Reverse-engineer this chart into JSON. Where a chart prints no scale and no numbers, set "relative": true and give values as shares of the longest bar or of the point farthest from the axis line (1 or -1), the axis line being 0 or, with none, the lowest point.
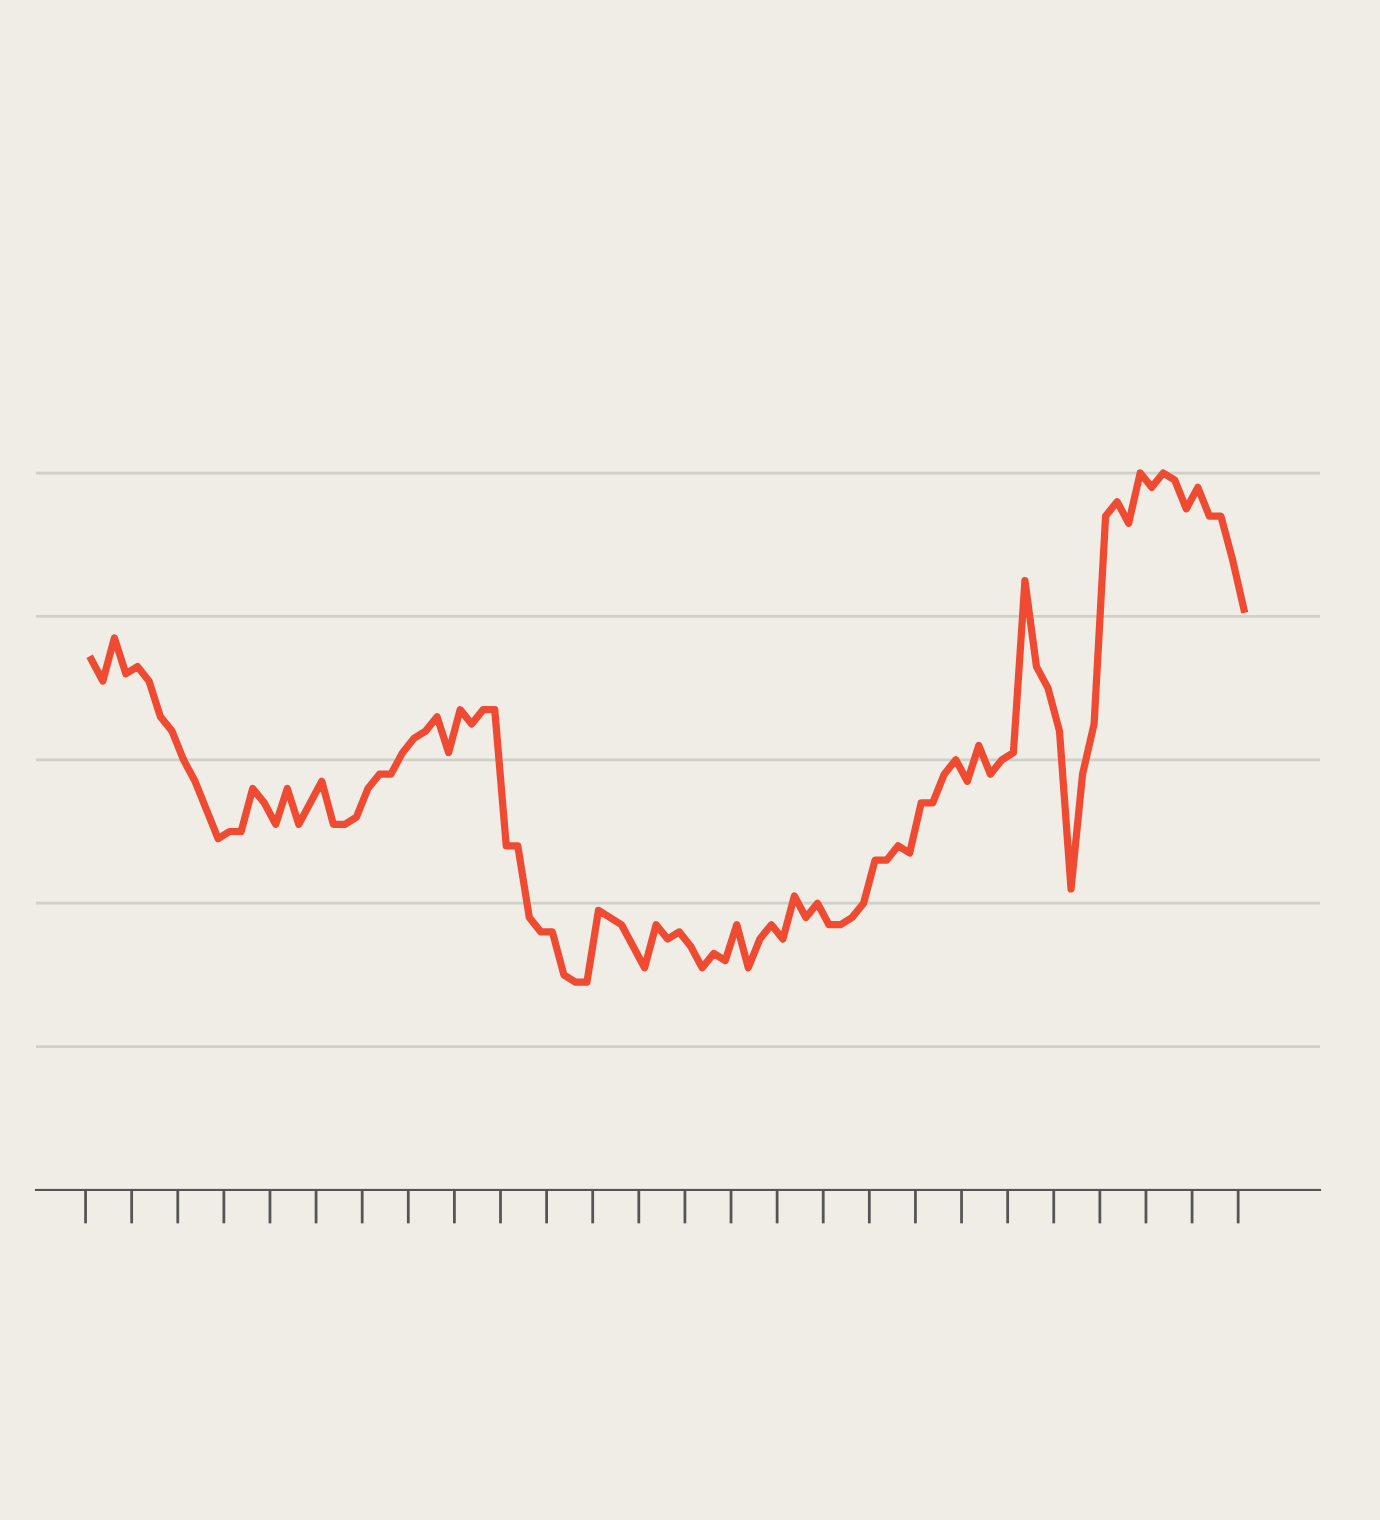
{
  "chart_data": {
    "type": "line",
    "relative": true,
    "grid": "y",
    "legend": false,
    "categories": [
      null,
      null,
      null,
      null,
      null,
      null,
      null,
      null,
      null,
      null,
      null,
      null,
      null,
      null,
      null,
      null,
      null,
      null,
      null,
      null,
      null,
      null,
      null,
      null,
      null,
      null,
      null,
      null,
      null,
      null,
      null,
      null,
      null,
      null,
      null,
      null,
      null,
      null,
      null,
      null,
      null,
      null,
      null,
      null,
      null,
      null,
      null,
      null,
      null,
      null,
      null,
      null,
      null,
      null,
      null,
      null,
      null,
      null,
      null,
      null,
      null,
      null,
      null,
      null,
      null,
      null,
      null,
      null,
      null,
      null,
      null,
      null,
      null,
      null,
      null,
      null,
      null,
      null,
      null,
      null,
      null,
      null,
      null,
      null,
      null,
      null,
      null,
      null,
      null,
      null,
      null,
      null,
      null,
      null,
      null,
      null,
      null,
      null,
      null,
      null,
      null
    ],
    "series": [
      {
        "color": "#ef4b32",
        "values": [
          0.74,
          0.71,
          0.77,
          0.72,
          0.73,
          0.71,
          0.66,
          0.64,
          0.6,
          0.57,
          0.53,
          0.49,
          0.5,
          0.5,
          0.56,
          0.54,
          0.51,
          0.56,
          0.51,
          0.54,
          0.57,
          0.51,
          0.51,
          0.52,
          0.56,
          0.58,
          0.58,
          0.61,
          0.63,
          0.64,
          0.66,
          0.61,
          0.67,
          0.65,
          0.67,
          0.67,
          0.48,
          0.48,
          0.38,
          0.36,
          0.36,
          0.3,
          0.29,
          0.29,
          0.39,
          0.38,
          0.37,
          0.34,
          0.31,
          0.37,
          0.35,
          0.36,
          0.34,
          0.31,
          0.33,
          0.32,
          0.37,
          0.31,
          0.35,
          0.37,
          0.35,
          0.41,
          0.38,
          0.4,
          0.37,
          0.37,
          0.38,
          0.4,
          0.46,
          0.46,
          0.48,
          0.47,
          0.54,
          0.54,
          0.58,
          0.6,
          0.57,
          0.62,
          0.58,
          0.6,
          0.61,
          0.85,
          0.73,
          0.7,
          0.64,
          0.42,
          0.58,
          0.65,
          0.94,
          0.96,
          0.93,
          1.0,
          0.98,
          1.0,
          0.99,
          0.95,
          0.98,
          0.94,
          0.94,
          0.88,
          0.81
        ]
      }
    ]
  }
}
